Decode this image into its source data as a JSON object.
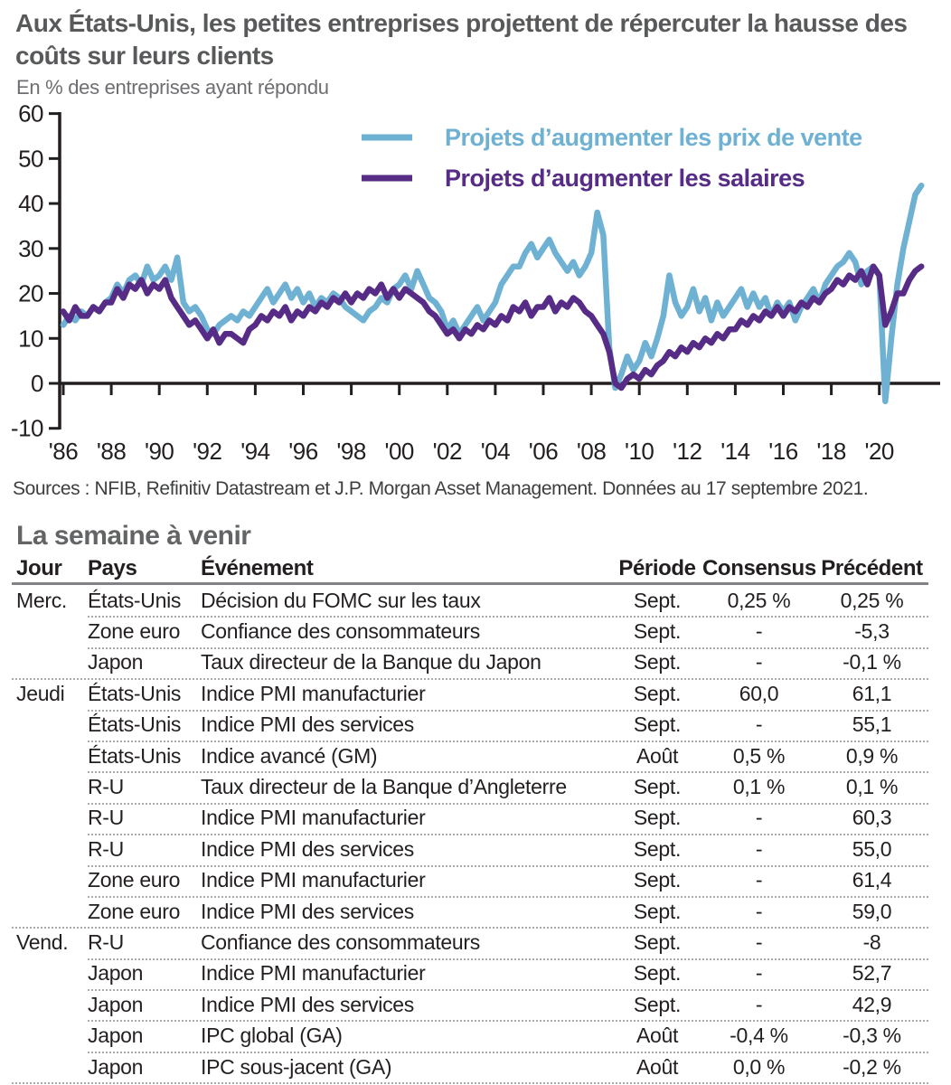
{
  "header": {
    "title": "Aux États-Unis, les petites entreprises projettent de répercuter la hausse des coûts sur leurs clients",
    "subtitle": "En % des entreprises ayant répondu"
  },
  "source": "Sources : NFIB, Refinitiv Datastream et J.P. Morgan Asset Management. Données au 17 septembre 2021.",
  "colors": {
    "price_line_blue": "#6FB1D2",
    "wage_line_purple": "#562C86",
    "title_gray": "#58595B",
    "text_dark": "#231F20",
    "header_rule_gray": "#808285",
    "dotted_rule_gray": "#A7A9AC"
  },
  "chart_data": {
    "type": "line",
    "title": "Aux États-Unis, les petites entreprises projettent de répercuter la hausse des coûts sur leurs clients",
    "subtitle": "En % des entreprises ayant répondu",
    "xlabel": "",
    "ylabel": "En % des entreprises ayant répondu",
    "ylim": [
      -10,
      60
    ],
    "grid": false,
    "legend_position": "top-center-inside",
    "y_ticks": [
      60,
      50,
      40,
      30,
      20,
      10,
      0,
      -10
    ],
    "x_tick_years": [
      1986,
      1988,
      1990,
      1992,
      1994,
      1996,
      1998,
      2000,
      2002,
      2004,
      2006,
      2008,
      2010,
      2012,
      2014,
      2016,
      2018,
      2020
    ],
    "x_tick_labels": [
      "'86",
      "'88",
      "'90",
      "'92",
      "'94",
      "'96",
      "'98",
      "'00",
      "'02",
      "'04",
      "'06",
      "'08",
      "'10",
      "'12",
      "'14",
      "'16",
      "'18",
      "'20"
    ],
    "x_start": 1986.0,
    "x_step": 0.25,
    "x_unit": "year (quarterly estimates of monthly survey data, 1986 – Sept. 2021)",
    "series": [
      {
        "name": "Projets d’augmenter les prix de vente",
        "color": "#6FB1D2",
        "values": [
          13,
          15,
          14,
          16,
          15,
          17,
          16,
          18,
          19,
          22,
          20,
          23,
          24,
          22,
          26,
          23,
          24,
          26,
          23,
          28,
          18,
          16,
          17,
          15,
          12,
          11,
          13,
          14,
          15,
          14,
          16,
          15,
          17,
          19,
          21,
          18,
          20,
          22,
          19,
          21,
          18,
          20,
          17,
          19,
          18,
          20,
          19,
          17,
          16,
          15,
          14,
          16,
          17,
          19,
          18,
          21,
          22,
          24,
          21,
          25,
          22,
          19,
          18,
          16,
          12,
          14,
          11,
          13,
          15,
          17,
          14,
          16,
          18,
          22,
          24,
          26,
          26,
          29,
          31,
          28,
          30,
          32,
          29,
          27,
          25,
          27,
          24,
          26,
          29,
          38,
          33,
          8,
          -1,
          2,
          6,
          3,
          5,
          9,
          6,
          10,
          15,
          24,
          18,
          15,
          17,
          21,
          16,
          19,
          14,
          18,
          15,
          17,
          19,
          21,
          17,
          20,
          17,
          19,
          15,
          18,
          16,
          18,
          14,
          17,
          19,
          21,
          18,
          22,
          24,
          26,
          27,
          29,
          27,
          22,
          25,
          26,
          24,
          -4,
          10,
          22,
          30,
          36,
          42,
          44
        ]
      },
      {
        "name": "Projets d’augmenter les salaires",
        "color": "#562C86",
        "values": [
          16,
          14,
          17,
          15,
          15,
          17,
          16,
          18,
          18,
          21,
          19,
          22,
          21,
          23,
          20,
          22,
          21,
          23,
          19,
          17,
          15,
          13,
          14,
          12,
          10,
          12,
          9,
          11,
          11,
          10,
          9,
          12,
          13,
          15,
          14,
          16,
          15,
          17,
          14,
          16,
          15,
          17,
          16,
          18,
          17,
          19,
          18,
          20,
          18,
          20,
          19,
          21,
          20,
          22,
          19,
          21,
          19,
          21,
          20,
          19,
          18,
          16,
          15,
          13,
          11,
          12,
          10,
          12,
          11,
          13,
          12,
          14,
          13,
          15,
          14,
          17,
          16,
          18,
          15,
          17,
          17,
          19,
          16,
          18,
          17,
          19,
          18,
          16,
          15,
          13,
          11,
          7,
          0,
          -1,
          1,
          2,
          1,
          3,
          2,
          4,
          5,
          7,
          6,
          8,
          7,
          9,
          8,
          10,
          9,
          11,
          10,
          12,
          12,
          14,
          13,
          15,
          14,
          16,
          15,
          17,
          15,
          17,
          16,
          18,
          17,
          19,
          18,
          20,
          21,
          23,
          22,
          24,
          23,
          25,
          22,
          26,
          24,
          13,
          16,
          20,
          20,
          23,
          25,
          26
        ]
      }
    ],
    "source": "Sources : NFIB, Refinitiv Datastream et J.P. Morgan Asset Management. Données au 17 septembre 2021."
  },
  "week_ahead": {
    "section_title": "La semaine à venir",
    "columns": [
      "Jour",
      "Pays",
      "Événement",
      "Période",
      "Consensus",
      "Précédent"
    ],
    "rows": [
      {
        "jour": "Merc.",
        "pays": "États-Unis",
        "evenement": "Décision du FOMC sur les taux",
        "periode": "Sept.",
        "consensus": "0,25 %",
        "precedent": "0,25 %",
        "new_day": true
      },
      {
        "jour": "",
        "pays": "Zone euro",
        "evenement": "Confiance des consommateurs",
        "periode": "Sept.",
        "consensus": "-",
        "precedent": "-5,3",
        "new_day": false
      },
      {
        "jour": "",
        "pays": "Japon",
        "evenement": "Taux directeur de la Banque du Japon",
        "periode": "Sept.",
        "consensus": "-",
        "precedent": "-0,1 %",
        "new_day": false
      },
      {
        "jour": "Jeudi",
        "pays": "États-Unis",
        "evenement": "Indice PMI manufacturier",
        "periode": "Sept.",
        "consensus": "60,0",
        "precedent": "61,1",
        "new_day": true
      },
      {
        "jour": "",
        "pays": "États-Unis",
        "evenement": "Indice PMI des services",
        "periode": "Sept.",
        "consensus": "-",
        "precedent": "55,1",
        "new_day": false
      },
      {
        "jour": "",
        "pays": "États-Unis",
        "evenement": "Indice avancé (GM)",
        "periode": "Août",
        "consensus": "0,5 %",
        "precedent": "0,9 %",
        "new_day": false
      },
      {
        "jour": "",
        "pays": "R-U",
        "evenement": "Taux directeur de la Banque d’Angleterre",
        "periode": "Sept.",
        "consensus": "0,1 %",
        "precedent": "0,1 %",
        "new_day": false
      },
      {
        "jour": "",
        "pays": "R-U",
        "evenement": "Indice PMI manufacturier",
        "periode": "Sept.",
        "consensus": "-",
        "precedent": "60,3",
        "new_day": false
      },
      {
        "jour": "",
        "pays": "R-U",
        "evenement": "Indice PMI des services",
        "periode": "Sept.",
        "consensus": "-",
        "precedent": "55,0",
        "new_day": false
      },
      {
        "jour": "",
        "pays": "Zone euro",
        "evenement": "Indice PMI manufacturier",
        "periode": "Sept.",
        "consensus": "-",
        "precedent": "61,4",
        "new_day": false
      },
      {
        "jour": "",
        "pays": "Zone euro",
        "evenement": "Indice PMI des services",
        "periode": "Sept.",
        "consensus": "-",
        "precedent": "59,0",
        "new_day": false
      },
      {
        "jour": "Vend.",
        "pays": "R-U",
        "evenement": "Confiance des consommateurs",
        "periode": "Sept.",
        "consensus": "-",
        "precedent": "-8",
        "new_day": true
      },
      {
        "jour": "",
        "pays": "Japon",
        "evenement": "Indice PMI manufacturier",
        "periode": "Sept.",
        "consensus": "-",
        "precedent": "52,7",
        "new_day": false
      },
      {
        "jour": "",
        "pays": "Japon",
        "evenement": "Indice PMI des services",
        "periode": "Sept.",
        "consensus": "-",
        "precedent": "42,9",
        "new_day": false
      },
      {
        "jour": "",
        "pays": "Japon",
        "evenement": "IPC global (GA)",
        "periode": "Août",
        "consensus": "-0,4 %",
        "precedent": "-0,3 %",
        "new_day": false
      },
      {
        "jour": "",
        "pays": "Japon",
        "evenement": "IPC sous-jacent (GA)",
        "periode": "Août",
        "consensus": "0,0 %",
        "precedent": "-0,2 %",
        "new_day": false
      }
    ]
  }
}
